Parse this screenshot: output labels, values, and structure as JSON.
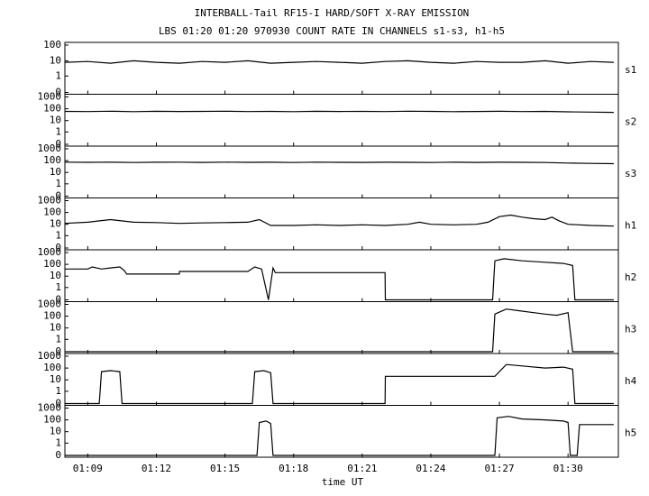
{
  "chart_data": {
    "type": "line",
    "title": "INTERBALL-Tail RF15-I HARD/SOFT X-RAY EMISSION",
    "subtitle": "LBS 01:20 01:20 970930  COUNT RATE IN CHANNELS s1-s3, h1-h5",
    "x_label": "time UT",
    "xlim": [
      8,
      32.2
    ],
    "xticks": [
      {
        "value": 9,
        "label": "01:09"
      },
      {
        "value": 12,
        "label": "01:12"
      },
      {
        "value": 15,
        "label": "01:15"
      },
      {
        "value": 18,
        "label": "01:18"
      },
      {
        "value": 21,
        "label": "01:21"
      },
      {
        "value": 24,
        "label": "01:24"
      },
      {
        "value": 27,
        "label": "01:27"
      },
      {
        "value": 30,
        "label": "01:30"
      }
    ],
    "scale": "log",
    "series": [
      {
        "name": "s1",
        "color": "#000000",
        "ylim": [
          0,
          100
        ],
        "yticks": [
          0,
          1,
          10,
          100
        ],
        "x": [
          8,
          9,
          10,
          11,
          12,
          13,
          14,
          15,
          16,
          17,
          18,
          19,
          20,
          21,
          22,
          23,
          24,
          25,
          26,
          27,
          28,
          29,
          30,
          31,
          32
        ],
        "values": [
          8,
          9,
          7,
          10,
          8,
          7,
          9,
          8,
          10,
          7,
          8,
          9,
          8,
          7,
          9,
          10,
          8,
          7,
          9,
          8,
          8,
          10,
          7,
          9,
          8
        ]
      },
      {
        "name": "s2",
        "color": "#000000",
        "ylim": [
          0,
          1000
        ],
        "yticks": [
          0,
          1,
          10,
          100,
          1000
        ],
        "x": [
          8,
          9,
          10,
          11,
          12,
          13,
          14,
          15,
          16,
          17,
          18,
          19,
          20,
          21,
          22,
          23,
          24,
          25,
          26,
          27,
          28,
          29,
          30,
          31,
          32
        ],
        "values": [
          60,
          58,
          62,
          57,
          61,
          59,
          60,
          63,
          58,
          60,
          57,
          61,
          59,
          60,
          58,
          62,
          60,
          57,
          59,
          61,
          58,
          60,
          55,
          52,
          50
        ]
      },
      {
        "name": "s3",
        "color": "#000000",
        "ylim": [
          0,
          1000
        ],
        "yticks": [
          0,
          1,
          10,
          100,
          1000
        ],
        "x": [
          8,
          9,
          10,
          11,
          12,
          13,
          14,
          15,
          16,
          17,
          18,
          19,
          20,
          21,
          22,
          23,
          24,
          25,
          26,
          27,
          28,
          29,
          30,
          31,
          32
        ],
        "values": [
          75,
          72,
          74,
          70,
          73,
          75,
          71,
          74,
          72,
          73,
          70,
          74,
          72,
          71,
          73,
          72,
          70,
          74,
          71,
          73,
          72,
          70,
          62,
          58,
          55
        ]
      },
      {
        "name": "h1",
        "color": "#000000",
        "ylim": [
          0,
          1000
        ],
        "yticks": [
          0,
          1,
          10,
          100,
          1000
        ],
        "x": [
          8,
          9,
          10,
          11,
          12,
          13,
          14,
          15,
          16,
          16.5,
          17,
          18,
          19,
          20,
          21,
          22,
          23,
          23.5,
          24,
          25,
          26,
          26.5,
          27,
          27.5,
          28,
          28.5,
          29,
          29.3,
          29.6,
          30,
          31,
          32
        ],
        "values": [
          12,
          15,
          25,
          15,
          14,
          12,
          13,
          14,
          15,
          25,
          8,
          8,
          9,
          8,
          9,
          8,
          10,
          15,
          10,
          9,
          10,
          15,
          45,
          60,
          40,
          30,
          25,
          40,
          20,
          10,
          8,
          7
        ]
      },
      {
        "name": "h2",
        "color": "#000000",
        "ylim": [
          0,
          1000
        ],
        "yticks": [
          0,
          1,
          10,
          100,
          1000
        ],
        "x": [
          8,
          9,
          9.2,
          9.6,
          10,
          10.4,
          10.6,
          10.7,
          13,
          13.01,
          16,
          16.3,
          16.6,
          16.9,
          17.1,
          17.2,
          22,
          22.01,
          26.7,
          26.8,
          27.2,
          28,
          29,
          29.8,
          30.2,
          30.3,
          32
        ],
        "values": [
          40,
          40,
          60,
          40,
          50,
          60,
          30,
          15,
          15,
          25,
          25,
          60,
          40,
          0,
          50,
          20,
          20,
          0,
          0,
          200,
          300,
          200,
          150,
          120,
          80,
          0,
          0
        ]
      },
      {
        "name": "h3",
        "color": "#000000",
        "ylim": [
          0,
          1000
        ],
        "yticks": [
          0,
          1,
          10,
          100,
          1000
        ],
        "x": [
          8,
          26.7,
          26.8,
          27.3,
          27.8,
          28.5,
          29,
          29.5,
          30,
          30.2,
          32
        ],
        "values": [
          0,
          0,
          150,
          400,
          300,
          200,
          150,
          120,
          200,
          0,
          0
        ]
      },
      {
        "name": "h4",
        "color": "#000000",
        "ylim": [
          0,
          1000
        ],
        "yticks": [
          0,
          1,
          10,
          100,
          1000
        ],
        "x": [
          8,
          9.5,
          9.6,
          10,
          10.4,
          10.5,
          16.2,
          16.3,
          16.7,
          17,
          17.1,
          22,
          22.01,
          26.8,
          27.3,
          28,
          29,
          29.8,
          30.2,
          30.3,
          32
        ],
        "values": [
          0,
          0,
          50,
          60,
          50,
          0,
          0,
          50,
          60,
          40,
          0,
          0,
          20,
          20,
          200,
          150,
          100,
          120,
          80,
          0,
          0
        ]
      },
      {
        "name": "h5",
        "color": "#000000",
        "ylim": [
          0,
          1000
        ],
        "yticks": [
          0,
          1,
          10,
          100,
          1000
        ],
        "x": [
          8,
          16.4,
          16.5,
          16.8,
          17,
          17.1,
          26.8,
          26.9,
          27.4,
          28,
          29,
          29.8,
          30,
          30.1,
          30.4,
          30.5,
          32
        ],
        "values": [
          0,
          0,
          60,
          80,
          50,
          0,
          0,
          150,
          200,
          120,
          100,
          80,
          60,
          0,
          0,
          40,
          40
        ]
      }
    ]
  }
}
